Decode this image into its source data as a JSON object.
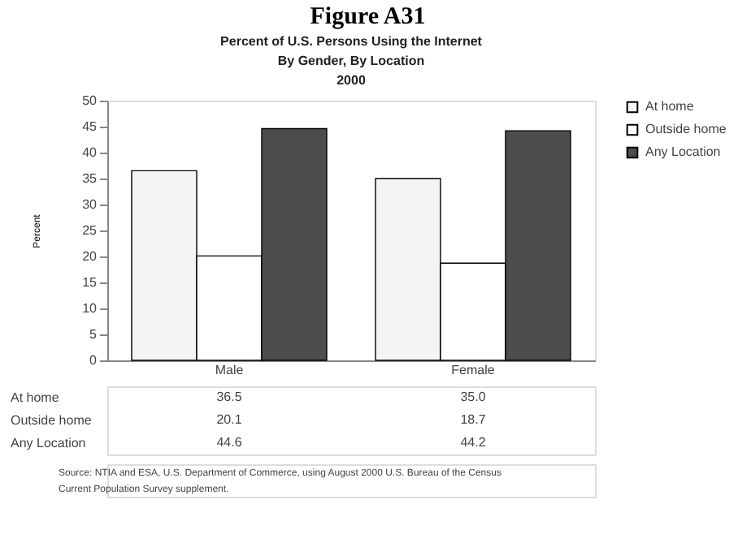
{
  "chart_data": {
    "type": "bar",
    "title": "Figure A31",
    "subtitle": "Percent of U.S. Persons Using the Internet\nBy Gender, By Location\n2000",
    "ylabel": "Percent",
    "categories": [
      "Male",
      "Female"
    ],
    "series": [
      {
        "name": "At home",
        "color": "#f4f4f4",
        "values": [
          36.5,
          35.0
        ],
        "value_labels": [
          "36.5",
          "35.0"
        ]
      },
      {
        "name": "Outside home",
        "color": "#ffffff",
        "values": [
          20.1,
          18.7
        ],
        "value_labels": [
          "20.1",
          "18.7"
        ]
      },
      {
        "name": "Any Location",
        "color": "#4d4d4d",
        "values": [
          44.6,
          44.2
        ],
        "value_labels": [
          "44.6",
          "44.2"
        ]
      }
    ],
    "ylim": [
      0,
      50
    ],
    "yticks": [
      0,
      5,
      10,
      15,
      20,
      25,
      30,
      35,
      40,
      45,
      50
    ],
    "grid": false,
    "legend": "top right",
    "annotations": [
      "Source:  NTIA and ESA, U.S. Department of Commerce, using August 2000  U.S. Bureau of the Census\nCurrent Population Survey supplement."
    ]
  }
}
